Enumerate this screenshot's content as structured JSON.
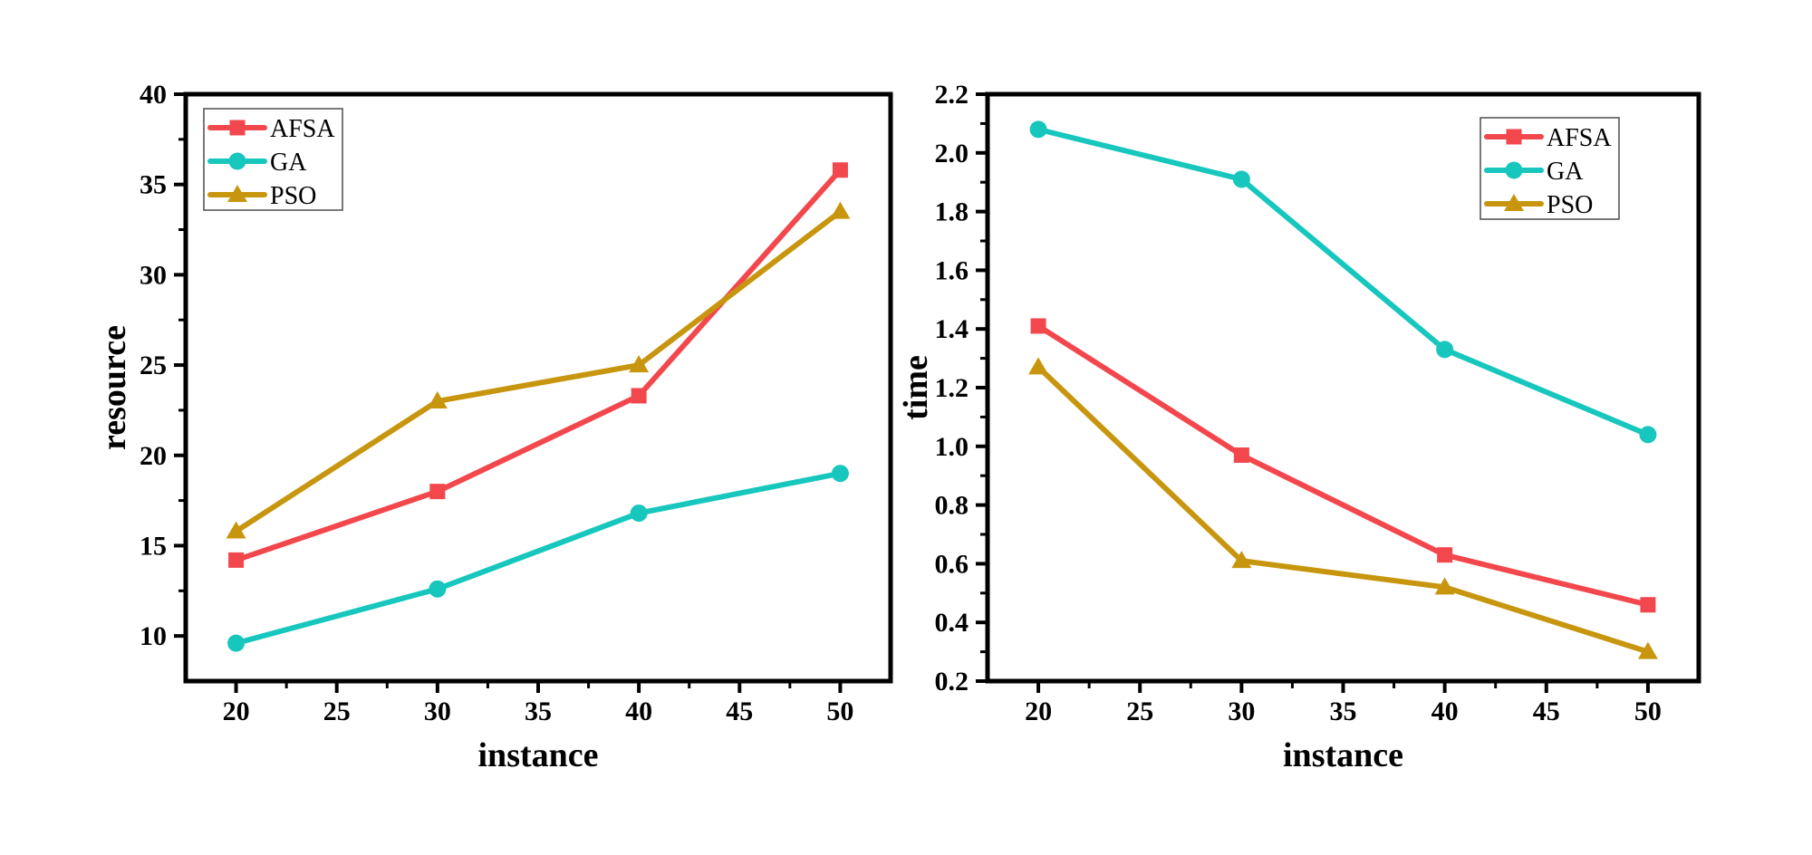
{
  "figure": {
    "background": "#ffffff",
    "axis_color": "#000000",
    "legend_border_color": "#4d4d4d",
    "legend_background": "#ffffff"
  },
  "colors": {
    "afsa": "#F2474D",
    "ga": "#17C7BE",
    "pso": "#C8960E"
  },
  "chart_data": [
    {
      "type": "line",
      "title": "",
      "xlabel": "instance",
      "ylabel": "resource",
      "x": [
        20,
        30,
        40,
        50
      ],
      "xlim": [
        17.5,
        52.5
      ],
      "ylim": [
        7.5,
        40
      ],
      "xticks": [
        20,
        25,
        30,
        35,
        40,
        45,
        50
      ],
      "yticks": [
        10,
        15,
        20,
        25,
        30,
        35,
        40
      ],
      "xtick_labels": [
        "20",
        "25",
        "30",
        "35",
        "40",
        "45",
        "50"
      ],
      "ytick_labels": [
        "10",
        "15",
        "20",
        "25",
        "30",
        "35",
        "40"
      ],
      "x_minor_step": 2.5,
      "y_minor_step": 2.5,
      "grid": false,
      "legend_position": "top-left",
      "legend_entries": [
        "AFSA",
        "GA",
        "PSO"
      ],
      "series": [
        {
          "name": "AFSA",
          "marker": "square",
          "color_key": "afsa",
          "values": [
            14.2,
            18.0,
            23.3,
            35.8
          ]
        },
        {
          "name": "GA",
          "marker": "circle",
          "color_key": "ga",
          "values": [
            9.6,
            12.6,
            16.8,
            19.0
          ]
        },
        {
          "name": "PSO",
          "marker": "triangle",
          "color_key": "pso",
          "values": [
            15.8,
            23.0,
            25.0,
            33.5
          ]
        }
      ]
    },
    {
      "type": "line",
      "title": "",
      "xlabel": "instance",
      "ylabel": "time",
      "x": [
        20,
        30,
        40,
        50
      ],
      "xlim": [
        17.5,
        52.5
      ],
      "ylim": [
        0.2,
        2.2
      ],
      "xticks": [
        20,
        25,
        30,
        35,
        40,
        45,
        50
      ],
      "yticks": [
        0.2,
        0.4,
        0.6,
        0.8,
        1.0,
        1.2,
        1.4,
        1.6,
        1.8,
        2.0,
        2.2
      ],
      "xtick_labels": [
        "20",
        "25",
        "30",
        "35",
        "40",
        "45",
        "50"
      ],
      "ytick_labels": [
        "0.2",
        "0.4",
        "0.6",
        "0.8",
        "1.0",
        "1.2",
        "1.4",
        "1.6",
        "1.8",
        "2.0",
        "2.2"
      ],
      "x_minor_step": 2.5,
      "y_minor_step": 0.1,
      "grid": false,
      "legend_position": "top-right",
      "legend_entries": [
        "AFSA",
        "GA",
        "PSO"
      ],
      "series": [
        {
          "name": "AFSA",
          "marker": "square",
          "color_key": "afsa",
          "values": [
            1.41,
            0.97,
            0.63,
            0.46
          ]
        },
        {
          "name": "GA",
          "marker": "circle",
          "color_key": "ga",
          "values": [
            2.08,
            1.91,
            1.33,
            1.04
          ]
        },
        {
          "name": "PSO",
          "marker": "triangle",
          "color_key": "pso",
          "values": [
            1.27,
            0.61,
            0.52,
            0.3
          ]
        }
      ]
    }
  ]
}
